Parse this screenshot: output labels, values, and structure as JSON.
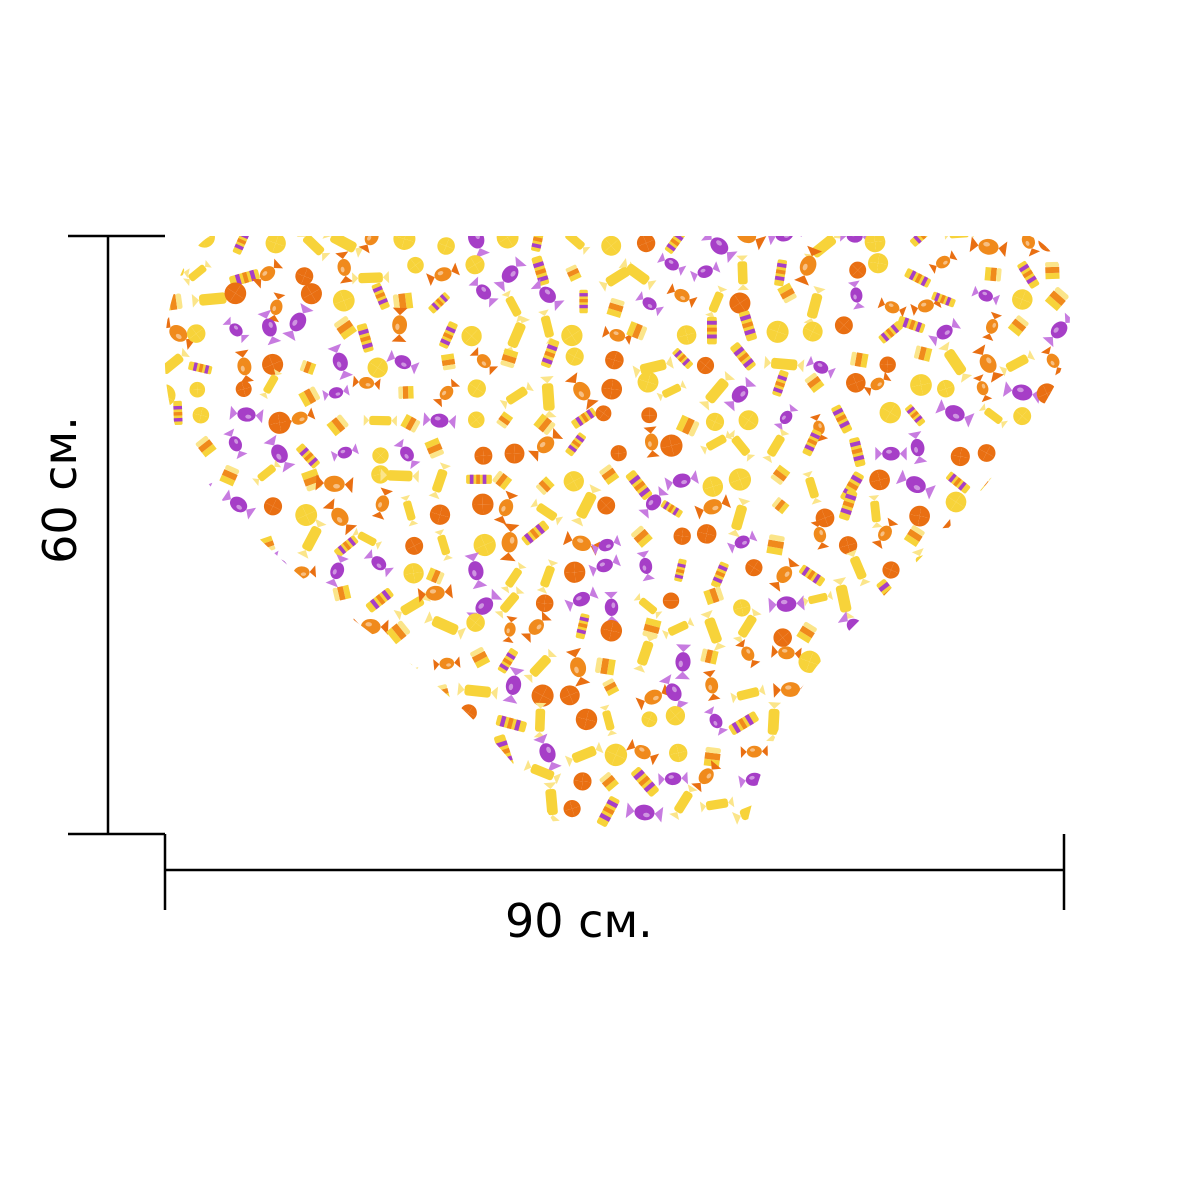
{
  "dimensions": {
    "width_label": "90 см.",
    "height_label": "60 см."
  },
  "pattern": {
    "shape": "heart-icon",
    "motif": "candy-icon",
    "colors": {
      "yellow": "#f7d33a",
      "light_yellow": "#fbe58a",
      "orange": "#f08a1c",
      "dark_orange": "#e96f12",
      "purple": "#a63ec7",
      "light_purple": "#c77be0",
      "white": "#ffffff"
    }
  },
  "line_color": "#000000"
}
